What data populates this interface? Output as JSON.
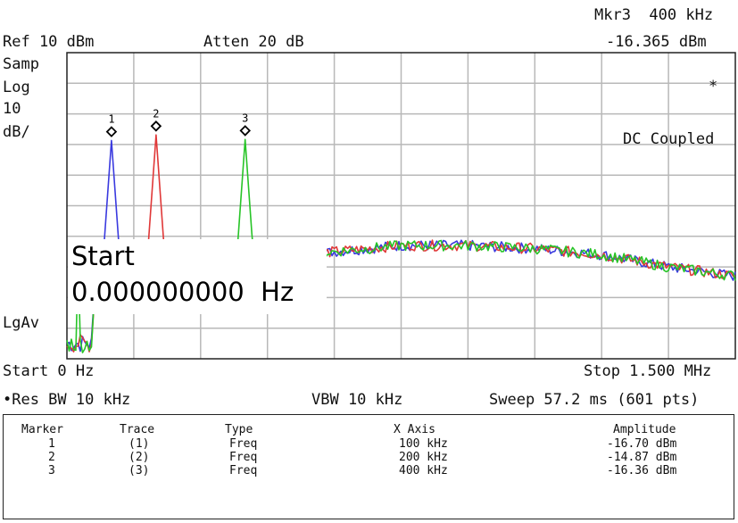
{
  "header": {
    "marker_readout_freq": "Mkr3  400 kHz",
    "ref_level": "Ref 10 dBm",
    "atten": "Atten 20 dB",
    "marker_readout_amp": "-16.365 dBm"
  },
  "left_labels": {
    "detector": "Samp",
    "scale_type": "Log",
    "scale_value": "10",
    "scale_unit": "dB/",
    "averaging": "LgAv"
  },
  "annotations": {
    "dc_coupled": "DC Coupled",
    "asterisk": "*"
  },
  "active_entry": {
    "label": "Start",
    "value": "0.000000000  Hz"
  },
  "footer": {
    "start": "Start 0 Hz",
    "stop": "Stop 1.500 MHz",
    "res_bw": "•Res BW 10 kHz",
    "vbw": "VBW 10 kHz",
    "sweep": "Sweep 57.2 ms (601 pts)"
  },
  "marker_table": {
    "headers": [
      "Marker",
      "Trace",
      "Type",
      "X Axis",
      "Amplitude"
    ],
    "rows": [
      [
        "1",
        "(1)",
        "Freq",
        "100 kHz",
        "-16.70 dBm"
      ],
      [
        "2",
        "(2)",
        "Freq",
        "200 kHz",
        "-14.87 dBm"
      ],
      [
        "3",
        "(3)",
        "Freq",
        "400 kHz",
        "-16.36 dBm"
      ]
    ]
  },
  "chart_data": {
    "type": "line",
    "title": "",
    "xlabel": "",
    "ylabel": "",
    "xlim": [
      0,
      1500
    ],
    "x_unit": "kHz",
    "ylim": [
      -90,
      10
    ],
    "y_unit": "dBm",
    "grid": true,
    "series": [
      {
        "color": "#3a3adf",
        "peak_x": 100,
        "peak_y": -16.7
      },
      {
        "color": "#e03838",
        "peak_x": 200,
        "peak_y": -14.87
      },
      {
        "color": "#27c427",
        "peak_x": 400,
        "peak_y": -16.36
      }
    ],
    "noise_floor": {
      "x": [
        80,
        200,
        300,
        450,
        600,
        750,
        900,
        1050,
        1200,
        1350,
        1500
      ],
      "y": [
        -73,
        -66,
        -62,
        -58,
        -55,
        -53,
        -53,
        -54,
        -56,
        -60,
        -63
      ]
    },
    "markers": [
      {
        "label": "1",
        "x": 100,
        "y": -16.7
      },
      {
        "label": "2",
        "x": 200,
        "y": -14.87
      },
      {
        "label": "3",
        "x": 400,
        "y": -16.36
      }
    ],
    "colors": {
      "grid": "#b8b8b8",
      "frame": "#222222"
    }
  }
}
